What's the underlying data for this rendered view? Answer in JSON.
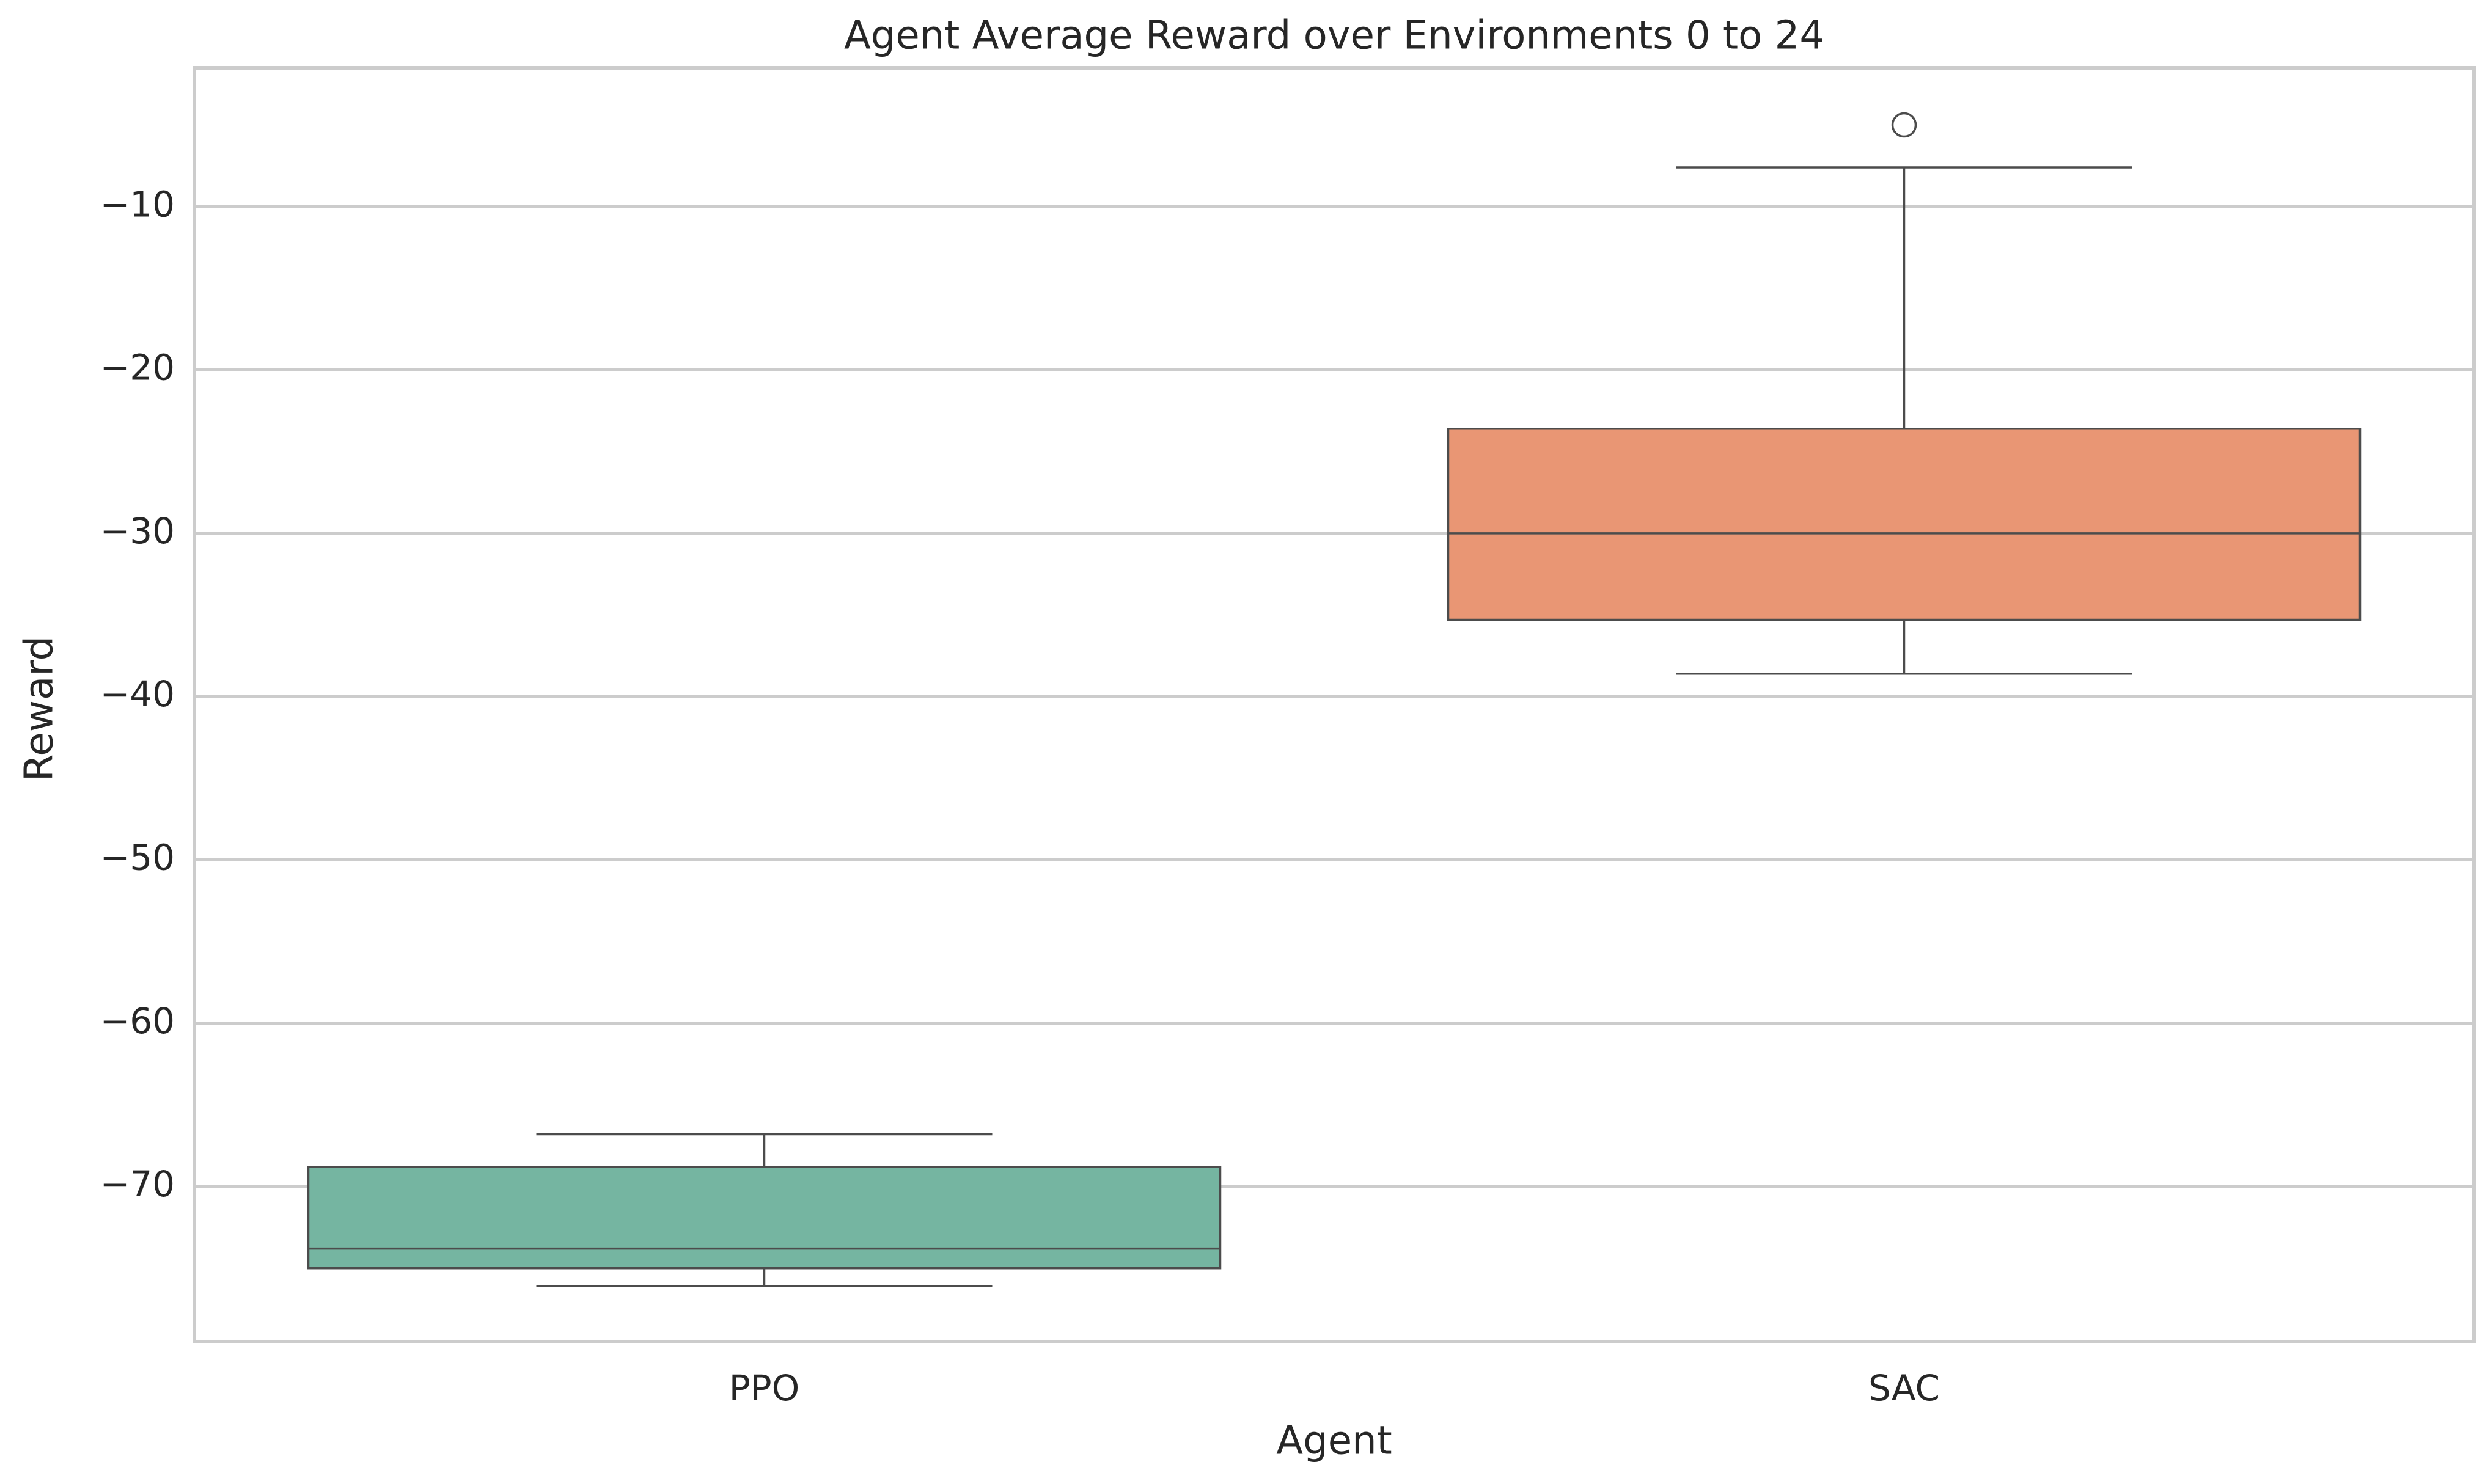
{
  "chart_data": {
    "type": "box",
    "title": "Agent Average Reward over Environments 0 to 24",
    "xlabel": "Agent",
    "ylabel": "Reward",
    "categories": [
      "PPO",
      "SAC"
    ],
    "ylim": [
      -79.5,
      -1.5
    ],
    "yticks": [
      -70,
      -60,
      -50,
      -40,
      -30,
      -20,
      -10
    ],
    "ytick_labels": [
      "−70",
      "−60",
      "−50",
      "−40",
      "−30",
      "−20",
      "−10"
    ],
    "grid": true,
    "series": [
      {
        "name": "PPO",
        "color": "#75b5a1",
        "whisker_low": -76.1,
        "q1": -75.0,
        "median": -73.8,
        "q3": -68.8,
        "whisker_high": -66.8,
        "outliers": []
      },
      {
        "name": "SAC",
        "color": "#e99674",
        "whisker_low": -38.6,
        "q1": -35.3,
        "median": -30.0,
        "q3": -23.6,
        "whisker_high": -7.6,
        "outliers": [
          -5.0
        ]
      }
    ]
  },
  "colors": {
    "axes_edge": "#cccccc",
    "grid": "#cccccc",
    "box_line": "#4c4c4c",
    "text": "#262626"
  }
}
